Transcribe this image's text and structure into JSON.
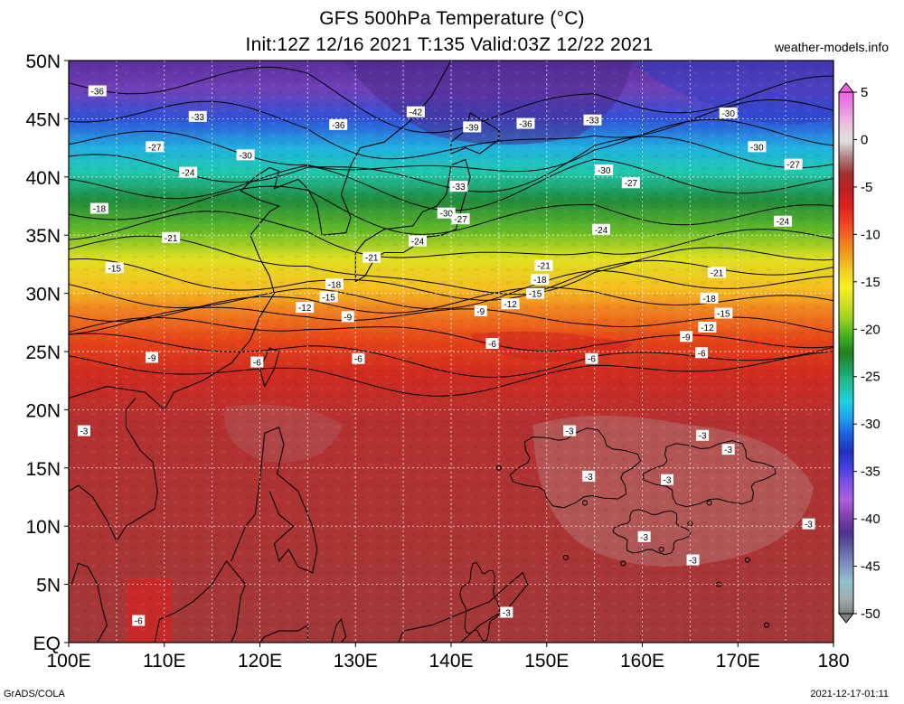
{
  "header": {
    "title_line1": "GFS 500hPa Temperature (°C)",
    "title_line2": "Init:12Z 12/16 2021 T:135 Valid:03Z 12/22 2021",
    "site": "weather-models.info"
  },
  "footer": {
    "left": "GrADS/COLA",
    "right": "2021-12-17-01:11"
  },
  "map": {
    "lon_ticks": [
      "100E",
      "110E",
      "120E",
      "130E",
      "140E",
      "150E",
      "160E",
      "170E",
      "180"
    ],
    "lat_ticks": [
      "EQ",
      "5N",
      "10N",
      "15N",
      "20N",
      "25N",
      "30N",
      "35N",
      "40N",
      "45N",
      "50N"
    ],
    "lon_range": [
      100,
      180
    ],
    "lat_range": [
      0,
      50
    ],
    "grid": "dotted",
    "contour_labels": [
      {
        "text": "-36",
        "lon": 103,
        "lat": 47.4
      },
      {
        "text": "-33",
        "lon": 113.5,
        "lat": 45.2
      },
      {
        "text": "-36",
        "lon": 128.2,
        "lat": 44.5
      },
      {
        "text": "-42",
        "lon": 136.3,
        "lat": 45.6
      },
      {
        "text": "-39",
        "lon": 142.2,
        "lat": 44.3
      },
      {
        "text": "-36",
        "lon": 147.8,
        "lat": 44.6
      },
      {
        "text": "-33",
        "lon": 154.8,
        "lat": 44.9
      },
      {
        "text": "-30",
        "lon": 169,
        "lat": 45.5
      },
      {
        "text": "-30",
        "lon": 172,
        "lat": 42.6
      },
      {
        "text": "-27",
        "lon": 109,
        "lat": 42.6
      },
      {
        "text": "-30",
        "lon": 118.5,
        "lat": 41.9
      },
      {
        "text": "-24",
        "lon": 112.5,
        "lat": 40.4
      },
      {
        "text": "-30",
        "lon": 156,
        "lat": 40.6
      },
      {
        "text": "-27",
        "lon": 175.8,
        "lat": 41.1
      },
      {
        "text": "-33",
        "lon": 140.8,
        "lat": 39.2
      },
      {
        "text": "-27",
        "lon": 158.8,
        "lat": 39.5
      },
      {
        "text": "-30",
        "lon": 139.5,
        "lat": 36.9
      },
      {
        "text": "-27",
        "lon": 141,
        "lat": 36.4
      },
      {
        "text": "-18",
        "lon": 103.2,
        "lat": 37.3
      },
      {
        "text": "-24",
        "lon": 174.7,
        "lat": 36.2
      },
      {
        "text": "-24",
        "lon": 155.7,
        "lat": 35.5
      },
      {
        "text": "-21",
        "lon": 110.7,
        "lat": 34.8
      },
      {
        "text": "-24",
        "lon": 136.5,
        "lat": 34.5
      },
      {
        "text": "-21",
        "lon": 131.7,
        "lat": 33.1
      },
      {
        "text": "-15",
        "lon": 104.8,
        "lat": 32.2
      },
      {
        "text": "-21",
        "lon": 149.7,
        "lat": 32.4
      },
      {
        "text": "-21",
        "lon": 167.8,
        "lat": 31.8
      },
      {
        "text": "-18",
        "lon": 149.3,
        "lat": 31.2
      },
      {
        "text": "-18",
        "lon": 127.8,
        "lat": 30.8
      },
      {
        "text": "-15",
        "lon": 148.8,
        "lat": 30
      },
      {
        "text": "-15",
        "lon": 127.2,
        "lat": 29.7
      },
      {
        "text": "-18",
        "lon": 167,
        "lat": 29.6
      },
      {
        "text": "-12",
        "lon": 146.2,
        "lat": 29.1
      },
      {
        "text": "-12",
        "lon": 124.7,
        "lat": 28.8
      },
      {
        "text": "-15",
        "lon": 168.5,
        "lat": 28.3
      },
      {
        "text": "-9",
        "lon": 143.1,
        "lat": 28.5
      },
      {
        "text": "-9",
        "lon": 129.2,
        "lat": 28
      },
      {
        "text": "-12",
        "lon": 166.8,
        "lat": 27.1
      },
      {
        "text": "-9",
        "lon": 164.6,
        "lat": 26.3
      },
      {
        "text": "-6",
        "lon": 144.3,
        "lat": 25.7
      },
      {
        "text": "-6",
        "lon": 166.2,
        "lat": 24.9
      },
      {
        "text": "-9",
        "lon": 108.7,
        "lat": 24.5
      },
      {
        "text": "-6",
        "lon": 119.7,
        "lat": 24.1
      },
      {
        "text": "-6",
        "lon": 130.3,
        "lat": 24.4
      },
      {
        "text": "-6",
        "lon": 154.7,
        "lat": 24.4
      },
      {
        "text": "-3",
        "lon": 152.4,
        "lat": 18.2
      },
      {
        "text": "-3",
        "lon": 166.3,
        "lat": 17.8
      },
      {
        "text": "-3",
        "lon": 101.6,
        "lat": 18.2
      },
      {
        "text": "-3",
        "lon": 169,
        "lat": 16.6
      },
      {
        "text": "-3",
        "lon": 154.4,
        "lat": 14.3
      },
      {
        "text": "-3",
        "lon": 162.6,
        "lat": 14
      },
      {
        "text": "-3",
        "lon": 177.4,
        "lat": 10.2
      },
      {
        "text": "-3",
        "lon": 160.2,
        "lat": 9.1
      },
      {
        "text": "-3",
        "lon": 165.3,
        "lat": 7.1
      },
      {
        "text": "-3",
        "lon": 145.8,
        "lat": 2.6
      },
      {
        "text": "-6",
        "lon": 107.3,
        "lat": 1.9
      }
    ]
  },
  "colorbar": {
    "labels": [
      "5",
      "0",
      "-5",
      "-10",
      "-15",
      "-20",
      "-25",
      "-30",
      "-35",
      "-40",
      "-45",
      "-50"
    ],
    "colors": [
      "#f060e0",
      "#e890e0",
      "#f0c0e0",
      "#e0e0e0",
      "#b08080",
      "#a03030",
      "#c02020",
      "#e02020",
      "#f04020",
      "#f07020",
      "#f0a020",
      "#f0d020",
      "#f8f020",
      "#d0e020",
      "#90d020",
      "#40b020",
      "#208020",
      "#20a060",
      "#20c0a0",
      "#20d0e0",
      "#20a0f0",
      "#2060e0",
      "#2030c0",
      "#4040e0",
      "#8050e0",
      "#b060e0",
      "#8040b0",
      "#503090",
      "#6060a0",
      "#8090c0",
      "#90c0d0",
      "#a0b0b0",
      "#808080"
    ],
    "colors_note": "colorbar palette ordered from +5 (top) to -50 (bottom)",
    "field_colors": {
      "warm": "#a63a3a",
      "hot_dry": "#c12222",
      "subtropical": "#e23a1c",
      "orange": "#f07020",
      "yellow": "#f5e020",
      "green": "#23902c",
      "cyan": "#20c8c8",
      "blue": "#2040d0",
      "purple": "#8040c0",
      "deep_purple": "#4a2a8a"
    }
  }
}
